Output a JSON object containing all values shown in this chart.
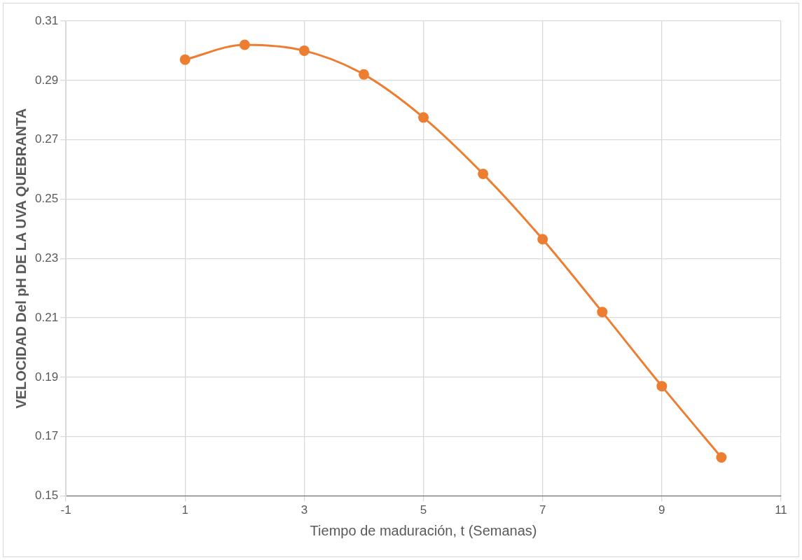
{
  "chart_data": {
    "type": "line",
    "xlabel": "Tiempo de maduración, t (Semanas)",
    "ylabel": "VELOCIDAD Del pH DE LA UVA QUEBRANTA",
    "x": [
      1,
      2,
      3,
      4,
      5,
      6,
      7,
      8,
      9,
      10
    ],
    "series": [
      {
        "color": "#ed7d31",
        "values": [
          0.297,
          0.302,
          0.3,
          0.292,
          0.2775,
          0.2585,
          0.2365,
          0.212,
          0.187,
          0.163
        ]
      }
    ],
    "xlim": [
      -1,
      11
    ],
    "xticks": [
      -1,
      1,
      3,
      5,
      7,
      9,
      11
    ],
    "ylim": [
      0.15,
      0.31
    ],
    "yticks": [
      0.15,
      0.17,
      0.19,
      0.21,
      0.23,
      0.25,
      0.27,
      0.29,
      0.31
    ],
    "grid": true,
    "legend": false,
    "marker": "circle",
    "line_style": "solid"
  }
}
